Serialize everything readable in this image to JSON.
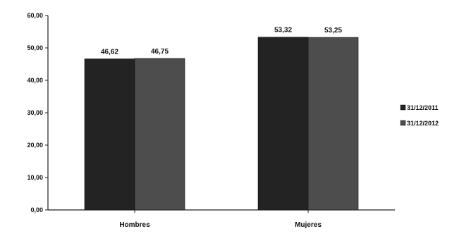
{
  "chart_data": {
    "type": "bar",
    "categories": [
      "Hombres",
      "Mujeres"
    ],
    "series": [
      {
        "name": "31/12/2011",
        "values": [
          46.62,
          53.32
        ],
        "labels": [
          "46,62",
          "53,32"
        ],
        "color": "#232323"
      },
      {
        "name": "31/12/2012",
        "values": [
          46.75,
          53.25
        ],
        "labels": [
          "46,75",
          "53,25"
        ],
        "color": "#4d4d4d"
      }
    ],
    "ylim": [
      0,
      60
    ],
    "yticks": [
      0,
      10,
      20,
      30,
      40,
      50,
      60
    ],
    "ytick_labels": [
      "0,00",
      "10,00",
      "20,00",
      "30,00",
      "40,00",
      "50,00",
      "60,00"
    ],
    "title": "",
    "xlabel": "",
    "ylabel": "",
    "grid": false,
    "legend_position": "right"
  }
}
